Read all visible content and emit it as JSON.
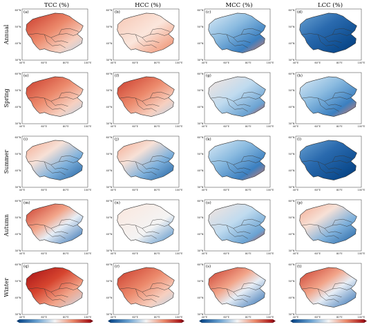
{
  "figure": {
    "columns": [
      {
        "id": "tcc",
        "label": "TCC (%)"
      },
      {
        "id": "hcc",
        "label": "HCC (%)"
      },
      {
        "id": "mcc",
        "label": "MCC (%)"
      },
      {
        "id": "lcc",
        "label": "LCC (%)"
      }
    ],
    "rows": [
      {
        "id": "annual",
        "label": "Annual"
      },
      {
        "id": "spring",
        "label": "Spring"
      },
      {
        "id": "summer",
        "label": "Summer"
      },
      {
        "id": "autumn",
        "label": "Autumn"
      },
      {
        "id": "winter",
        "label": "Winter"
      }
    ],
    "panel_labels": [
      "(a)",
      "(b)",
      "(c)",
      "(d)",
      "(e)",
      "(f)",
      "(g)",
      "(h)",
      "(i)",
      "(j)",
      "(k)",
      "(l)",
      "(m)",
      "(n)",
      "(o)",
      "(p)",
      "(q)",
      "(r)",
      "(s)",
      "(t)"
    ],
    "lat_ticks": [
      "60°N",
      "50°N",
      "40°N",
      "30°N"
    ],
    "lon_ticks": [
      "40°E",
      "60°E",
      "80°E",
      "100°E"
    ],
    "panel_tones": [
      [
        "warm",
        "warm-light",
        "cool",
        "cool-strong"
      ],
      [
        "warm",
        "warm",
        "cool-light",
        "cool"
      ],
      [
        "mixed",
        "mixed",
        "cool",
        "cool-strong"
      ],
      [
        "warm-cool",
        "light",
        "cool-light",
        "mixed"
      ],
      [
        "warm-strong",
        "warm",
        "warm-cool",
        "warm-cool"
      ]
    ],
    "colorbar": {
      "colormap": "diverging blue-white-red"
    },
    "colors": {
      "dark_blue": "#0c4b8e",
      "blue": "#3b7fc0",
      "light_blue": "#a9cde8",
      "white": "#f7f7f7",
      "light_red": "#f5b49a",
      "red": "#dd5a44",
      "dark_red": "#a50f15"
    }
  }
}
